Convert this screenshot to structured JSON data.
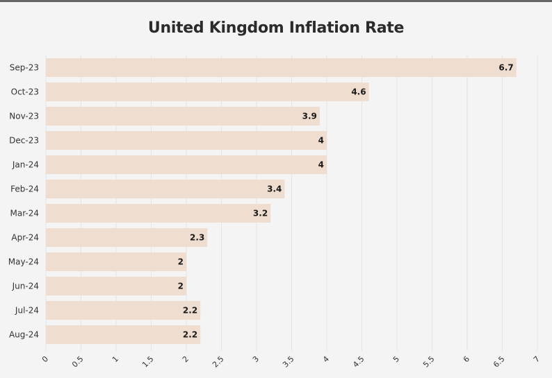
{
  "chart_data": {
    "type": "bar",
    "orientation": "horizontal",
    "title": "United Kingdom Inflation Rate",
    "categories": [
      "Sep-23",
      "Oct-23",
      "Nov-23",
      "Dec-23",
      "Jan-24",
      "Feb-24",
      "Mar-24",
      "Apr-24",
      "May-24",
      "Jun-24",
      "Jul-24",
      "Aug-24"
    ],
    "values": [
      6.7,
      4.6,
      3.9,
      4,
      4,
      3.4,
      3.2,
      2.3,
      2,
      2,
      2.2,
      2.2
    ],
    "xlim": [
      0,
      7
    ],
    "xticks": [
      "0",
      "0.5",
      "1",
      "1.5",
      "2",
      "2.5",
      "3",
      "3.5",
      "4",
      "4.5",
      "5",
      "5.5",
      "6",
      "6.5",
      "7"
    ],
    "grid": true,
    "bar_color": "#efdecf",
    "data_labels": true
  }
}
